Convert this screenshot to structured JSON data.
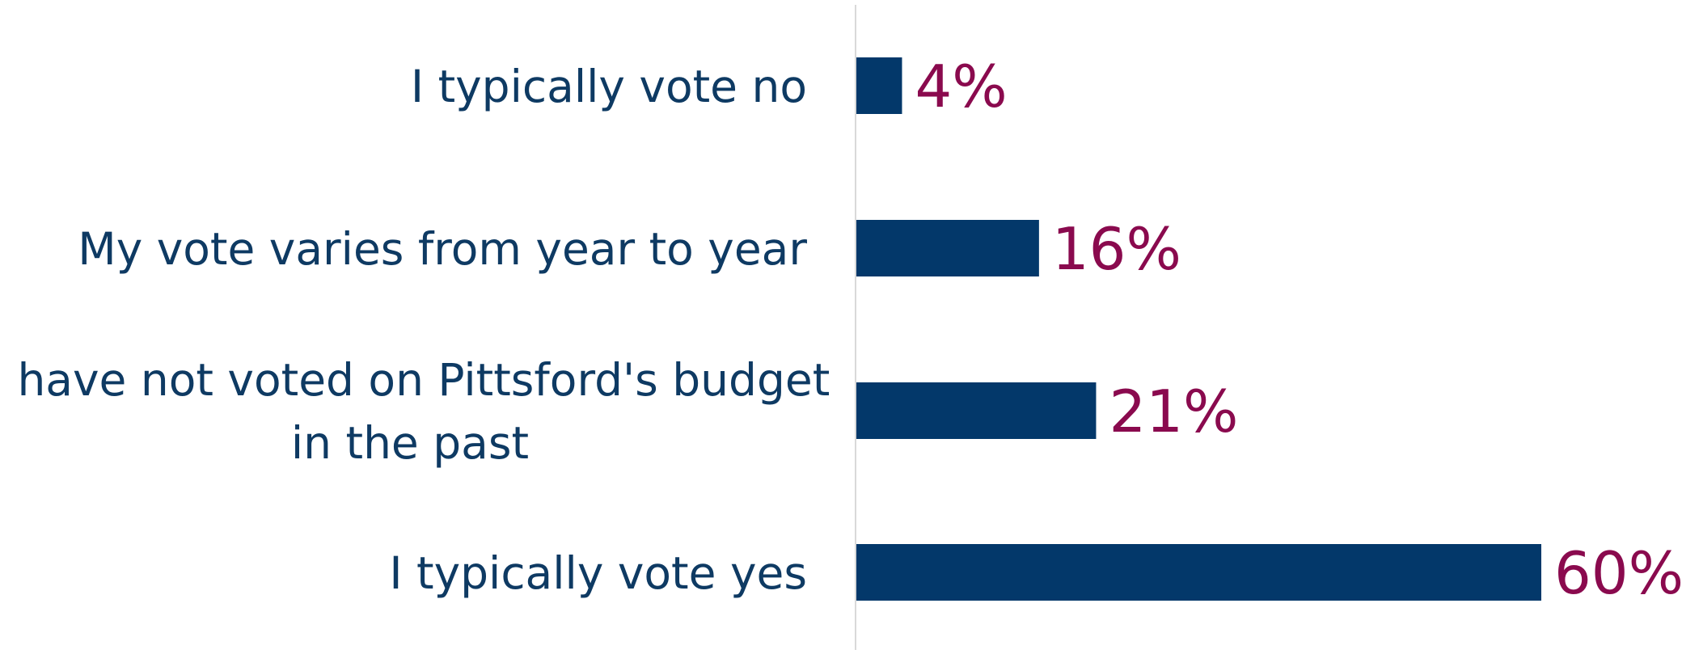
{
  "chart_data": {
    "type": "bar",
    "orientation": "horizontal",
    "categories": [
      [
        "I typically vote no"
      ],
      [
        "My vote varies from year to year"
      ],
      [
        "I have not voted on Pittsford's budget",
        "in the past"
      ],
      [
        "I typically vote yes"
      ]
    ],
    "values": [
      4,
      16,
      21,
      60
    ],
    "value_labels": [
      "4%",
      "16%",
      "21%",
      "60%"
    ],
    "unit": "%",
    "title": "",
    "xlabel": "",
    "ylabel": "",
    "xlim": [
      0,
      60
    ],
    "grid": false,
    "legend": "none",
    "colors": {
      "bar": "#03386A",
      "label_text": "#0E3A63",
      "value_text": "#8A0A4E",
      "axis_line": "#D9D9D9"
    }
  }
}
